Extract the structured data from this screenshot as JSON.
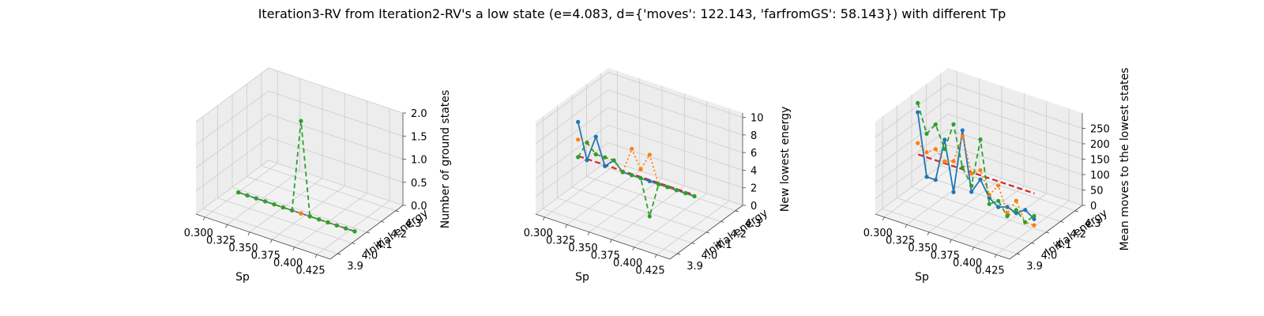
{
  "figure": {
    "title": "Iteration3-RV from Iteration2-RV's a low state (e=4.083, d={'moves': 122.143, 'farfromGS': 58.143}) with different Tp"
  },
  "colors": {
    "series1": "#1f77b4",
    "series2": "#ff7f0e",
    "series3": "#2ca02c",
    "reference": "#d62728",
    "pane_side": "#ededed",
    "pane_floor": "#f2f2f2",
    "grid": "#cccccc"
  },
  "chart_data": [
    {
      "type": "line3d",
      "xlabel": "Sp",
      "ylabel": "Initial energy",
      "zlabel": "Number of ground states",
      "x_ticks": [
        "0.300",
        "0.325",
        "0.350",
        "0.375",
        "0.400",
        "0.425"
      ],
      "y_ticks": [
        "3.9",
        "4.0",
        "4.1",
        "4.2",
        "4.3"
      ],
      "z_ticks": [
        "0.0",
        "0.5",
        "1.0",
        "1.5",
        "2.0"
      ],
      "xlim": [
        0.29,
        0.44
      ],
      "ylim": [
        3.85,
        4.35
      ],
      "zlim": [
        0,
        2
      ],
      "series": [
        {
          "style": "solid",
          "y": 4.08,
          "x": [
            0.3,
            0.31,
            0.32,
            0.33,
            0.34,
            0.35,
            0.36,
            0.37,
            0.38,
            0.39,
            0.4,
            0.41,
            0.42,
            0.43
          ],
          "z": [
            0,
            0,
            0,
            0,
            0,
            0,
            0,
            0,
            0,
            0,
            0,
            0,
            0,
            0
          ]
        },
        {
          "style": "dotted",
          "y": 4.08,
          "x": [
            0.3,
            0.31,
            0.32,
            0.33,
            0.34,
            0.35,
            0.36,
            0.37,
            0.38,
            0.39,
            0.4,
            0.41,
            0.42,
            0.43
          ],
          "z": [
            0,
            0,
            0,
            0,
            0,
            0,
            0,
            0,
            0,
            0,
            0,
            0,
            0,
            0
          ]
        },
        {
          "style": "dashed",
          "y": 4.08,
          "x": [
            0.3,
            0.31,
            0.32,
            0.33,
            0.34,
            0.35,
            0.36,
            0.37,
            0.38,
            0.39,
            0.4,
            0.41,
            0.42,
            0.43
          ],
          "z": [
            0,
            0,
            0,
            0,
            0,
            0,
            0,
            2,
            0,
            0,
            0,
            0,
            0,
            0
          ]
        }
      ],
      "reference_line": null
    },
    {
      "type": "line3d",
      "xlabel": "Sp",
      "ylabel": "Initial energy",
      "zlabel": "New lowest energy",
      "x_ticks": [
        "0.300",
        "0.325",
        "0.350",
        "0.375",
        "0.400",
        "0.425"
      ],
      "y_ticks": [
        "3.9",
        "4.0",
        "4.1",
        "4.2",
        "4.3"
      ],
      "z_ticks": [
        "0",
        "2",
        "4",
        "6",
        "8",
        "10"
      ],
      "xlim": [
        0.29,
        0.44
      ],
      "ylim": [
        3.85,
        4.35
      ],
      "zlim": [
        0,
        10.5
      ],
      "series": [
        {
          "style": "solid",
          "y": 4.08,
          "x": [
            0.3,
            0.31,
            0.32,
            0.33,
            0.34,
            0.35,
            0.36,
            0.37,
            0.38,
            0.39,
            0.4,
            0.41,
            0.42,
            0.43
          ],
          "z": [
            8,
            4,
            7,
            4,
            5,
            4,
            4,
            4,
            4,
            4,
            4,
            4,
            4,
            4
          ]
        },
        {
          "style": "dotted",
          "y": 4.08,
          "x": [
            0.3,
            0.31,
            0.32,
            0.33,
            0.34,
            0.35,
            0.36,
            0.37,
            0.38,
            0.39,
            0.4,
            0.41,
            0.42,
            0.43
          ],
          "z": [
            6,
            6,
            5,
            5,
            5,
            4,
            7,
            5,
            7,
            4,
            4,
            4,
            4,
            4
          ]
        },
        {
          "style": "dashed",
          "y": 4.08,
          "x": [
            0.3,
            0.31,
            0.32,
            0.33,
            0.34,
            0.35,
            0.36,
            0.37,
            0.38,
            0.39,
            0.4,
            0.41,
            0.42,
            0.43
          ],
          "z": [
            4,
            6,
            5,
            5,
            5,
            4,
            4,
            4,
            0,
            4,
            4,
            4,
            4,
            4
          ]
        }
      ],
      "reference_line": {
        "y": 4.083,
        "z": 4.083,
        "x": [
          0.3,
          0.43
        ]
      }
    },
    {
      "type": "line3d",
      "xlabel": "Sp",
      "ylabel": "Initial energy",
      "zlabel": "Mean moves to the lowest states",
      "x_ticks": [
        "0.300",
        "0.325",
        "0.350",
        "0.375",
        "0.400",
        "0.425"
      ],
      "y_ticks": [
        "3.9",
        "4.0",
        "4.1",
        "4.2",
        "4.3"
      ],
      "z_ticks": [
        "0",
        "50",
        "100",
        "150",
        "200",
        "250"
      ],
      "xlim": [
        0.29,
        0.44
      ],
      "ylim": [
        3.85,
        4.35
      ],
      "zlim": [
        0,
        300
      ],
      "series": [
        {
          "style": "solid",
          "y": 4.08,
          "x": [
            0.3,
            0.31,
            0.32,
            0.33,
            0.34,
            0.35,
            0.36,
            0.37,
            0.38,
            0.39,
            0.4,
            0.41,
            0.42,
            0.43
          ],
          "z": [
            260,
            60,
            60,
            200,
            40,
            250,
            60,
            110,
            60,
            40,
            50,
            40,
            60,
            40
          ]
        },
        {
          "style": "dotted",
          "y": 4.08,
          "x": [
            0.3,
            0.31,
            0.32,
            0.33,
            0.34,
            0.35,
            0.36,
            0.37,
            0.38,
            0.39,
            0.4,
            0.41,
            0.42,
            0.43
          ],
          "z": [
            160,
            140,
            160,
            130,
            140,
            230,
            120,
            140,
            70,
            110,
            30,
            80,
            20,
            20
          ]
        },
        {
          "style": "dashed",
          "y": 4.08,
          "x": [
            0.3,
            0.31,
            0.32,
            0.33,
            0.34,
            0.35,
            0.36,
            0.37,
            0.38,
            0.39,
            0.4,
            0.41,
            0.42,
            0.43
          ],
          "z": [
            290,
            200,
            240,
            170,
            260,
            130,
            80,
            240,
            40,
            60,
            20,
            50,
            20,
            50
          ]
        }
      ],
      "reference_line": {
        "y": 4.083,
        "z": 122.143,
        "x": [
          0.3,
          0.43
        ]
      }
    }
  ]
}
